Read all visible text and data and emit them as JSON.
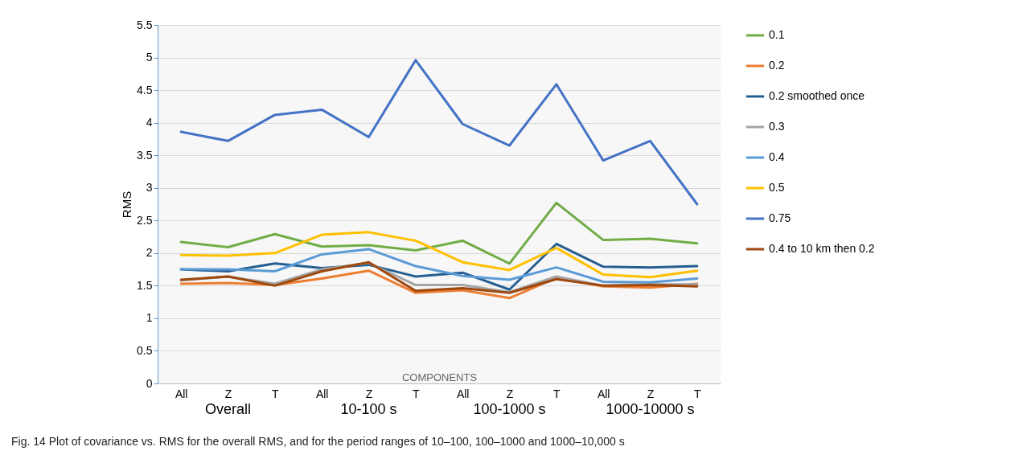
{
  "chart_data": {
    "type": "line",
    "xlabel": "COMPONENTS",
    "ylabel": "RMS",
    "categories": [
      "All",
      "Z",
      "T",
      "All",
      "Z",
      "T",
      "All",
      "Z",
      "T",
      "All",
      "Z",
      "T"
    ],
    "series": [
      {
        "name": "0.1",
        "color": "#70ad47",
        "values": [
          2.17,
          2.09,
          2.29,
          2.1,
          2.12,
          2.04,
          2.19,
          1.84,
          2.77,
          2.2,
          2.22,
          2.15
        ]
      },
      {
        "name": "0.2",
        "color": "#ed7d31",
        "values": [
          1.53,
          1.54,
          1.51,
          1.61,
          1.73,
          1.39,
          1.43,
          1.31,
          1.62,
          1.49,
          1.47,
          1.53
        ]
      },
      {
        "name": "0.2 smoothed once",
        "color": "#255e91",
        "values": [
          1.75,
          1.72,
          1.84,
          1.77,
          1.82,
          1.64,
          1.7,
          1.44,
          2.14,
          1.79,
          1.78,
          1.8
        ]
      },
      {
        "name": "0.3",
        "color": "#a5a5a5",
        "values": [
          1.58,
          1.64,
          1.53,
          1.75,
          1.85,
          1.51,
          1.51,
          1.4,
          1.64,
          1.5,
          1.52,
          1.52
        ]
      },
      {
        "name": "0.4",
        "color": "#5b9bd5",
        "values": [
          1.75,
          1.75,
          1.72,
          1.98,
          2.06,
          1.8,
          1.65,
          1.59,
          1.78,
          1.56,
          1.55,
          1.61
        ]
      },
      {
        "name": "0.5",
        "color": "#ffc000",
        "values": [
          1.97,
          1.96,
          2.0,
          2.28,
          2.32,
          2.19,
          1.86,
          1.74,
          2.08,
          1.67,
          1.63,
          1.73
        ]
      },
      {
        "name": "0.75",
        "color": "#4472c4",
        "values": [
          3.86,
          3.72,
          4.12,
          4.2,
          3.78,
          4.96,
          3.98,
          3.65,
          4.59,
          3.42,
          3.72,
          2.75
        ]
      },
      {
        "name": "0.4 to 10 km then 0.2",
        "color": "#9e480e",
        "values": [
          1.59,
          1.64,
          1.5,
          1.72,
          1.86,
          1.42,
          1.46,
          1.39,
          1.6,
          1.5,
          1.51,
          1.49
        ]
      }
    ],
    "ylim": [
      0,
      5.5
    ],
    "yticks": [
      0,
      0.5,
      1,
      1.5,
      2,
      2.5,
      3,
      3.5,
      4,
      4.5,
      5,
      5.5
    ],
    "grid": "y",
    "legend": "right",
    "annotations": [
      "Overall",
      "10-100 s",
      "100-1000 s",
      "1000-10000 s",
      "Fig. 14  Plot of covariance vs. RMS for the overall RMS, and for the period ranges of 10–100, 100–1000 and 1000–10,000 s"
    ]
  }
}
